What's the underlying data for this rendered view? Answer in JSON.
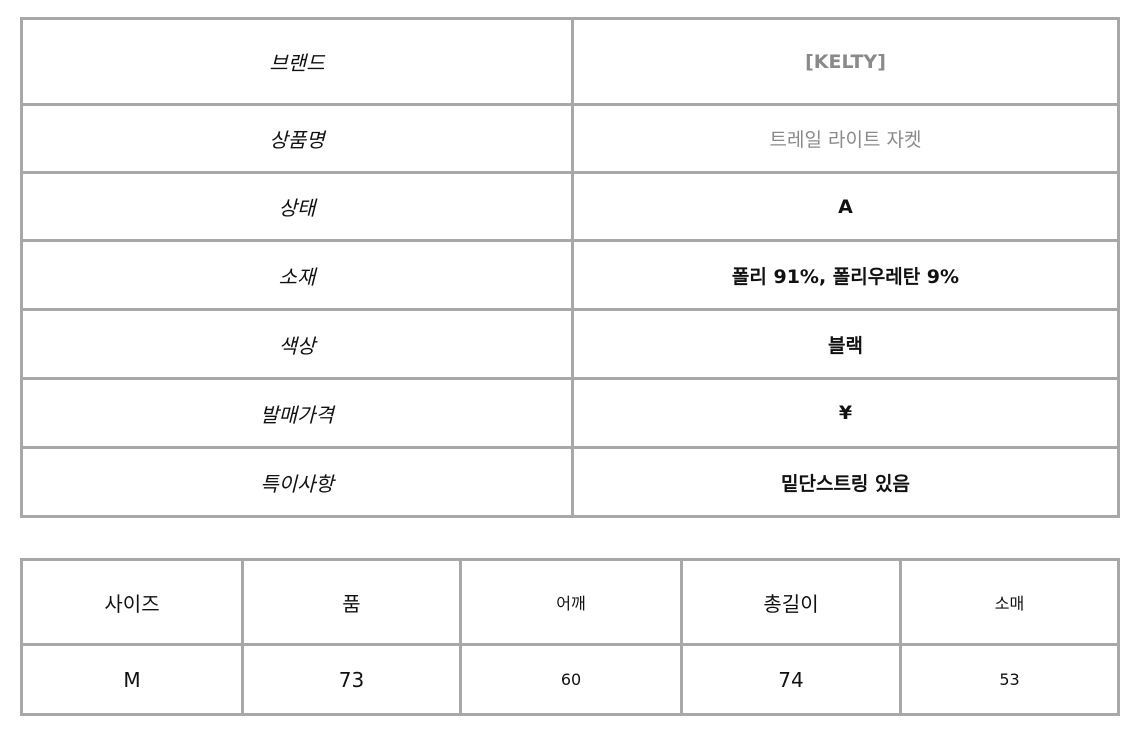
{
  "info_table": [
    {
      "label": "브랜드",
      "value": "[KELTY]"
    },
    {
      "label": "상품명",
      "value": "트레일 라이트 자켓"
    },
    {
      "label": "상태",
      "value": "A"
    },
    {
      "label": "소재",
      "value": "폴리 91%, 폴리우레탄 9%"
    },
    {
      "label": "색상",
      "value": "블랙"
    },
    {
      "label": "발매가격",
      "value": "¥"
    },
    {
      "label": "특이사항",
      "value": "밑단스트링 있음"
    }
  ],
  "size_table": {
    "headers": [
      "사이즈",
      "품",
      "어깨",
      "총길이",
      "소매"
    ],
    "rows": [
      [
        "M",
        "73",
        "60",
        "74",
        "53"
      ]
    ]
  }
}
